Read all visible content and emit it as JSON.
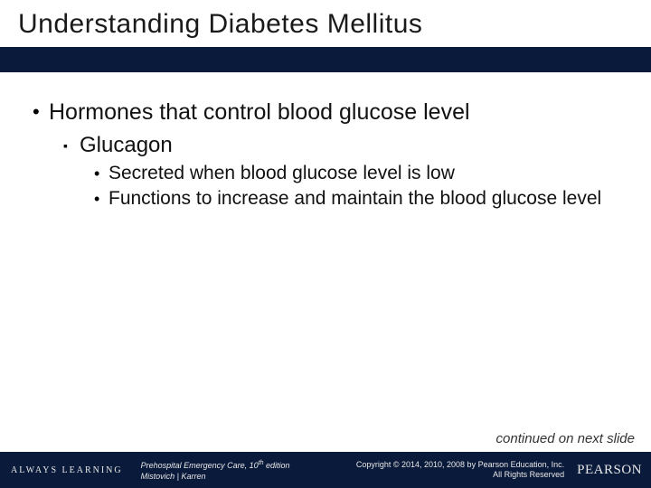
{
  "title": "Understanding Diabetes Mellitus",
  "colors": {
    "bar": "#0a1a3a",
    "footer_bg": "#0a1a3a",
    "footer_text": "#e8e8e8",
    "text": "#111111"
  },
  "body": {
    "lvl1": "Hormones that control blood glucose level",
    "lvl2": "Glucagon",
    "lvl3a": "Secreted when blood glucose level is low",
    "lvl3b": "Functions to increase and maintain the blood glucose level"
  },
  "continued": "continued on next slide",
  "footer": {
    "left": "ALWAYS LEARNING",
    "book_title": "Prehospital Emergency Care",
    "edition_pre": ", 10",
    "edition_sup": "th",
    "edition_post": " edition",
    "authors": "Mistovich | Karren",
    "copyright_line1": "Copyright © 2014, 2010, 2008 by Pearson Education, Inc.",
    "copyright_line2": "All Rights Reserved",
    "logo": "PEARSON"
  }
}
